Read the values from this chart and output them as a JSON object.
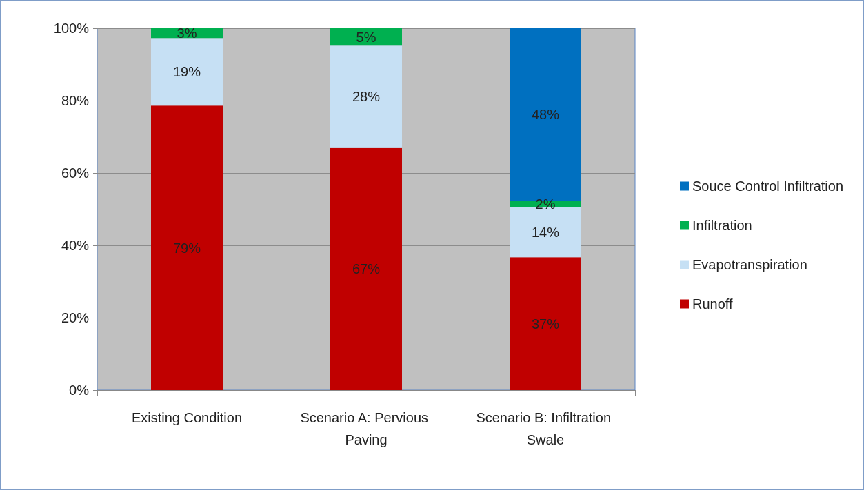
{
  "chart_data": {
    "type": "bar",
    "stacked": true,
    "categories": [
      "Existing Condition",
      "Scenario A: Pervious Paving",
      "Scenario B: Infiltration Swale"
    ],
    "series": [
      {
        "name": "Runoff",
        "color": "#c00000",
        "values": [
          78.6,
          66.9,
          36.7
        ],
        "value_labels": [
          "79%",
          "67%",
          "37%"
        ]
      },
      {
        "name": "Evapotranspiration",
        "color": "#c6e0f4",
        "values": [
          18.7,
          28.3,
          13.8
        ],
        "value_labels": [
          "19%",
          "28%",
          "14%"
        ]
      },
      {
        "name": "Infiltration",
        "color": "#00b050",
        "values": [
          2.7,
          4.8,
          1.8
        ],
        "value_labels": [
          "3%",
          "5%",
          "2%"
        ]
      },
      {
        "name": "Souce Control Infiltration",
        "color": "#0070c0",
        "values": [
          0,
          0,
          47.7
        ],
        "value_labels": [
          null,
          null,
          "48%"
        ]
      }
    ],
    "ylim": [
      0,
      100
    ],
    "yticks": [
      {
        "value": 0,
        "label": "0%"
      },
      {
        "value": 20,
        "label": "20%"
      },
      {
        "value": 40,
        "label": "40%"
      },
      {
        "value": 60,
        "label": "60%"
      },
      {
        "value": 80,
        "label": "80%"
      },
      {
        "value": 100,
        "label": "100%"
      }
    ],
    "grid": "y",
    "legend": "right"
  }
}
